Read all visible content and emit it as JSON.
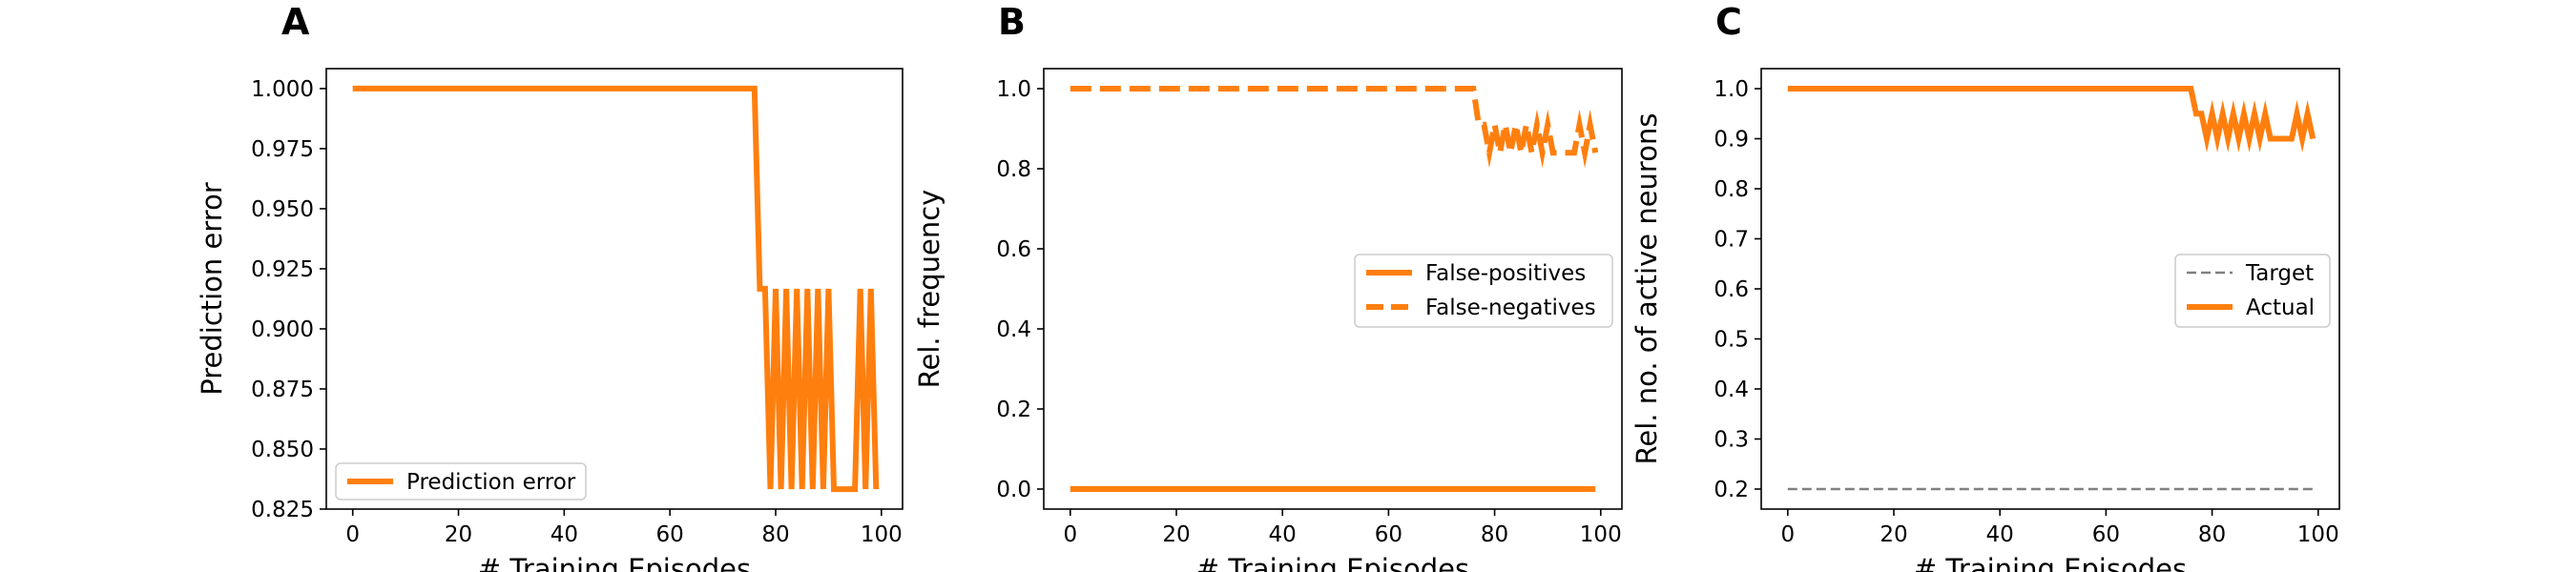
{
  "chart_data": [
    {
      "panel": "A",
      "type": "line",
      "title": "",
      "xlabel": "# Training Episodes",
      "ylabel": "Prediction error",
      "xlim": [
        -5,
        104
      ],
      "ylim": [
        0.825,
        1.0083
      ],
      "xticks": [
        0,
        20,
        40,
        60,
        80,
        100
      ],
      "xtick_labels": [
        "0",
        "20",
        "40",
        "60",
        "80",
        "100"
      ],
      "yticks": [
        0.825,
        0.85,
        0.875,
        0.9,
        0.925,
        0.95,
        0.975,
        1.0
      ],
      "ytick_labels": [
        "0.825",
        "0.850",
        "0.875",
        "0.900",
        "0.925",
        "0.950",
        "0.975",
        "1.000"
      ],
      "grid": false,
      "legend_position": "lower-left",
      "series": [
        {
          "name": "Prediction error",
          "color": "#ff7f0e",
          "style": "solid",
          "x": [
            0,
            76,
            77,
            78,
            79,
            80,
            81,
            82,
            83,
            84,
            85,
            86,
            87,
            88,
            89,
            90,
            91,
            92,
            93,
            94,
            95,
            96,
            97,
            98,
            99
          ],
          "y": [
            1.0,
            1.0,
            0.9167,
            0.9167,
            0.8333,
            0.9167,
            0.8333,
            0.9167,
            0.8333,
            0.9167,
            0.8333,
            0.9167,
            0.8333,
            0.9167,
            0.8333,
            0.9167,
            0.8333,
            0.8333,
            0.8333,
            0.8333,
            0.8333,
            0.9167,
            0.8333,
            0.9167,
            0.8333
          ]
        }
      ]
    },
    {
      "panel": "B",
      "type": "line",
      "title": "",
      "xlabel": "# Training Episodes",
      "ylabel": "Rel. frequency",
      "xlim": [
        -5,
        104
      ],
      "ylim": [
        -0.05,
        1.05
      ],
      "xticks": [
        0,
        20,
        40,
        60,
        80,
        100
      ],
      "xtick_labels": [
        "0",
        "20",
        "40",
        "60",
        "80",
        "100"
      ],
      "yticks": [
        0.0,
        0.2,
        0.4,
        0.6,
        0.8,
        1.0
      ],
      "ytick_labels": [
        "0.0",
        "0.2",
        "0.4",
        "0.6",
        "0.8",
        "1.0"
      ],
      "grid": false,
      "legend_position": "center-right",
      "series": [
        {
          "name": "False-positives",
          "color": "#ff7f0e",
          "style": "solid",
          "x": [
            0,
            99
          ],
          "y": [
            0.0,
            0.0
          ]
        },
        {
          "name": "False-negatives",
          "color": "#ff7f0e",
          "style": "dashed",
          "x": [
            0,
            76,
            77,
            78,
            79,
            80,
            81,
            82,
            83,
            84,
            85,
            86,
            87,
            88,
            89,
            90,
            91,
            92,
            93,
            94,
            95,
            96,
            97,
            98,
            99
          ],
          "y": [
            1.0,
            1.0,
            0.91,
            0.91,
            0.84,
            0.91,
            0.84,
            0.91,
            0.84,
            0.91,
            0.84,
            0.91,
            0.84,
            0.91,
            0.84,
            0.91,
            0.84,
            0.84,
            0.84,
            0.84,
            0.84,
            0.91,
            0.84,
            0.91,
            0.84
          ]
        }
      ]
    },
    {
      "panel": "C",
      "type": "line",
      "title": "",
      "xlabel": "# Training Episodes",
      "ylabel": "Rel. no. of active neurons",
      "xlim": [
        -5,
        104
      ],
      "ylim": [
        0.16,
        1.04
      ],
      "xticks": [
        0,
        20,
        40,
        60,
        80,
        100
      ],
      "xtick_labels": [
        "0",
        "20",
        "40",
        "60",
        "80",
        "100"
      ],
      "yticks": [
        0.2,
        0.3,
        0.4,
        0.5,
        0.6,
        0.7,
        0.8,
        0.9,
        1.0
      ],
      "ytick_labels": [
        "0.2",
        "0.3",
        "0.4",
        "0.5",
        "0.6",
        "0.7",
        "0.8",
        "0.9",
        "1.0"
      ],
      "grid": false,
      "legend_position": "center-right",
      "series": [
        {
          "name": "Target",
          "color": "#808080",
          "style": "dashed",
          "x": [
            0,
            99
          ],
          "y": [
            0.2,
            0.2
          ]
        },
        {
          "name": "Actual",
          "color": "#ff7f0e",
          "style": "solid",
          "x": [
            0,
            76,
            77,
            78,
            79,
            80,
            81,
            82,
            83,
            84,
            85,
            86,
            87,
            88,
            89,
            90,
            91,
            92,
            93,
            94,
            95,
            96,
            97,
            98,
            99
          ],
          "y": [
            1.0,
            1.0,
            0.95,
            0.95,
            0.9,
            0.95,
            0.9,
            0.95,
            0.9,
            0.95,
            0.9,
            0.95,
            0.9,
            0.95,
            0.9,
            0.95,
            0.9,
            0.9,
            0.9,
            0.9,
            0.9,
            0.95,
            0.9,
            0.95,
            0.9
          ]
        }
      ]
    }
  ]
}
